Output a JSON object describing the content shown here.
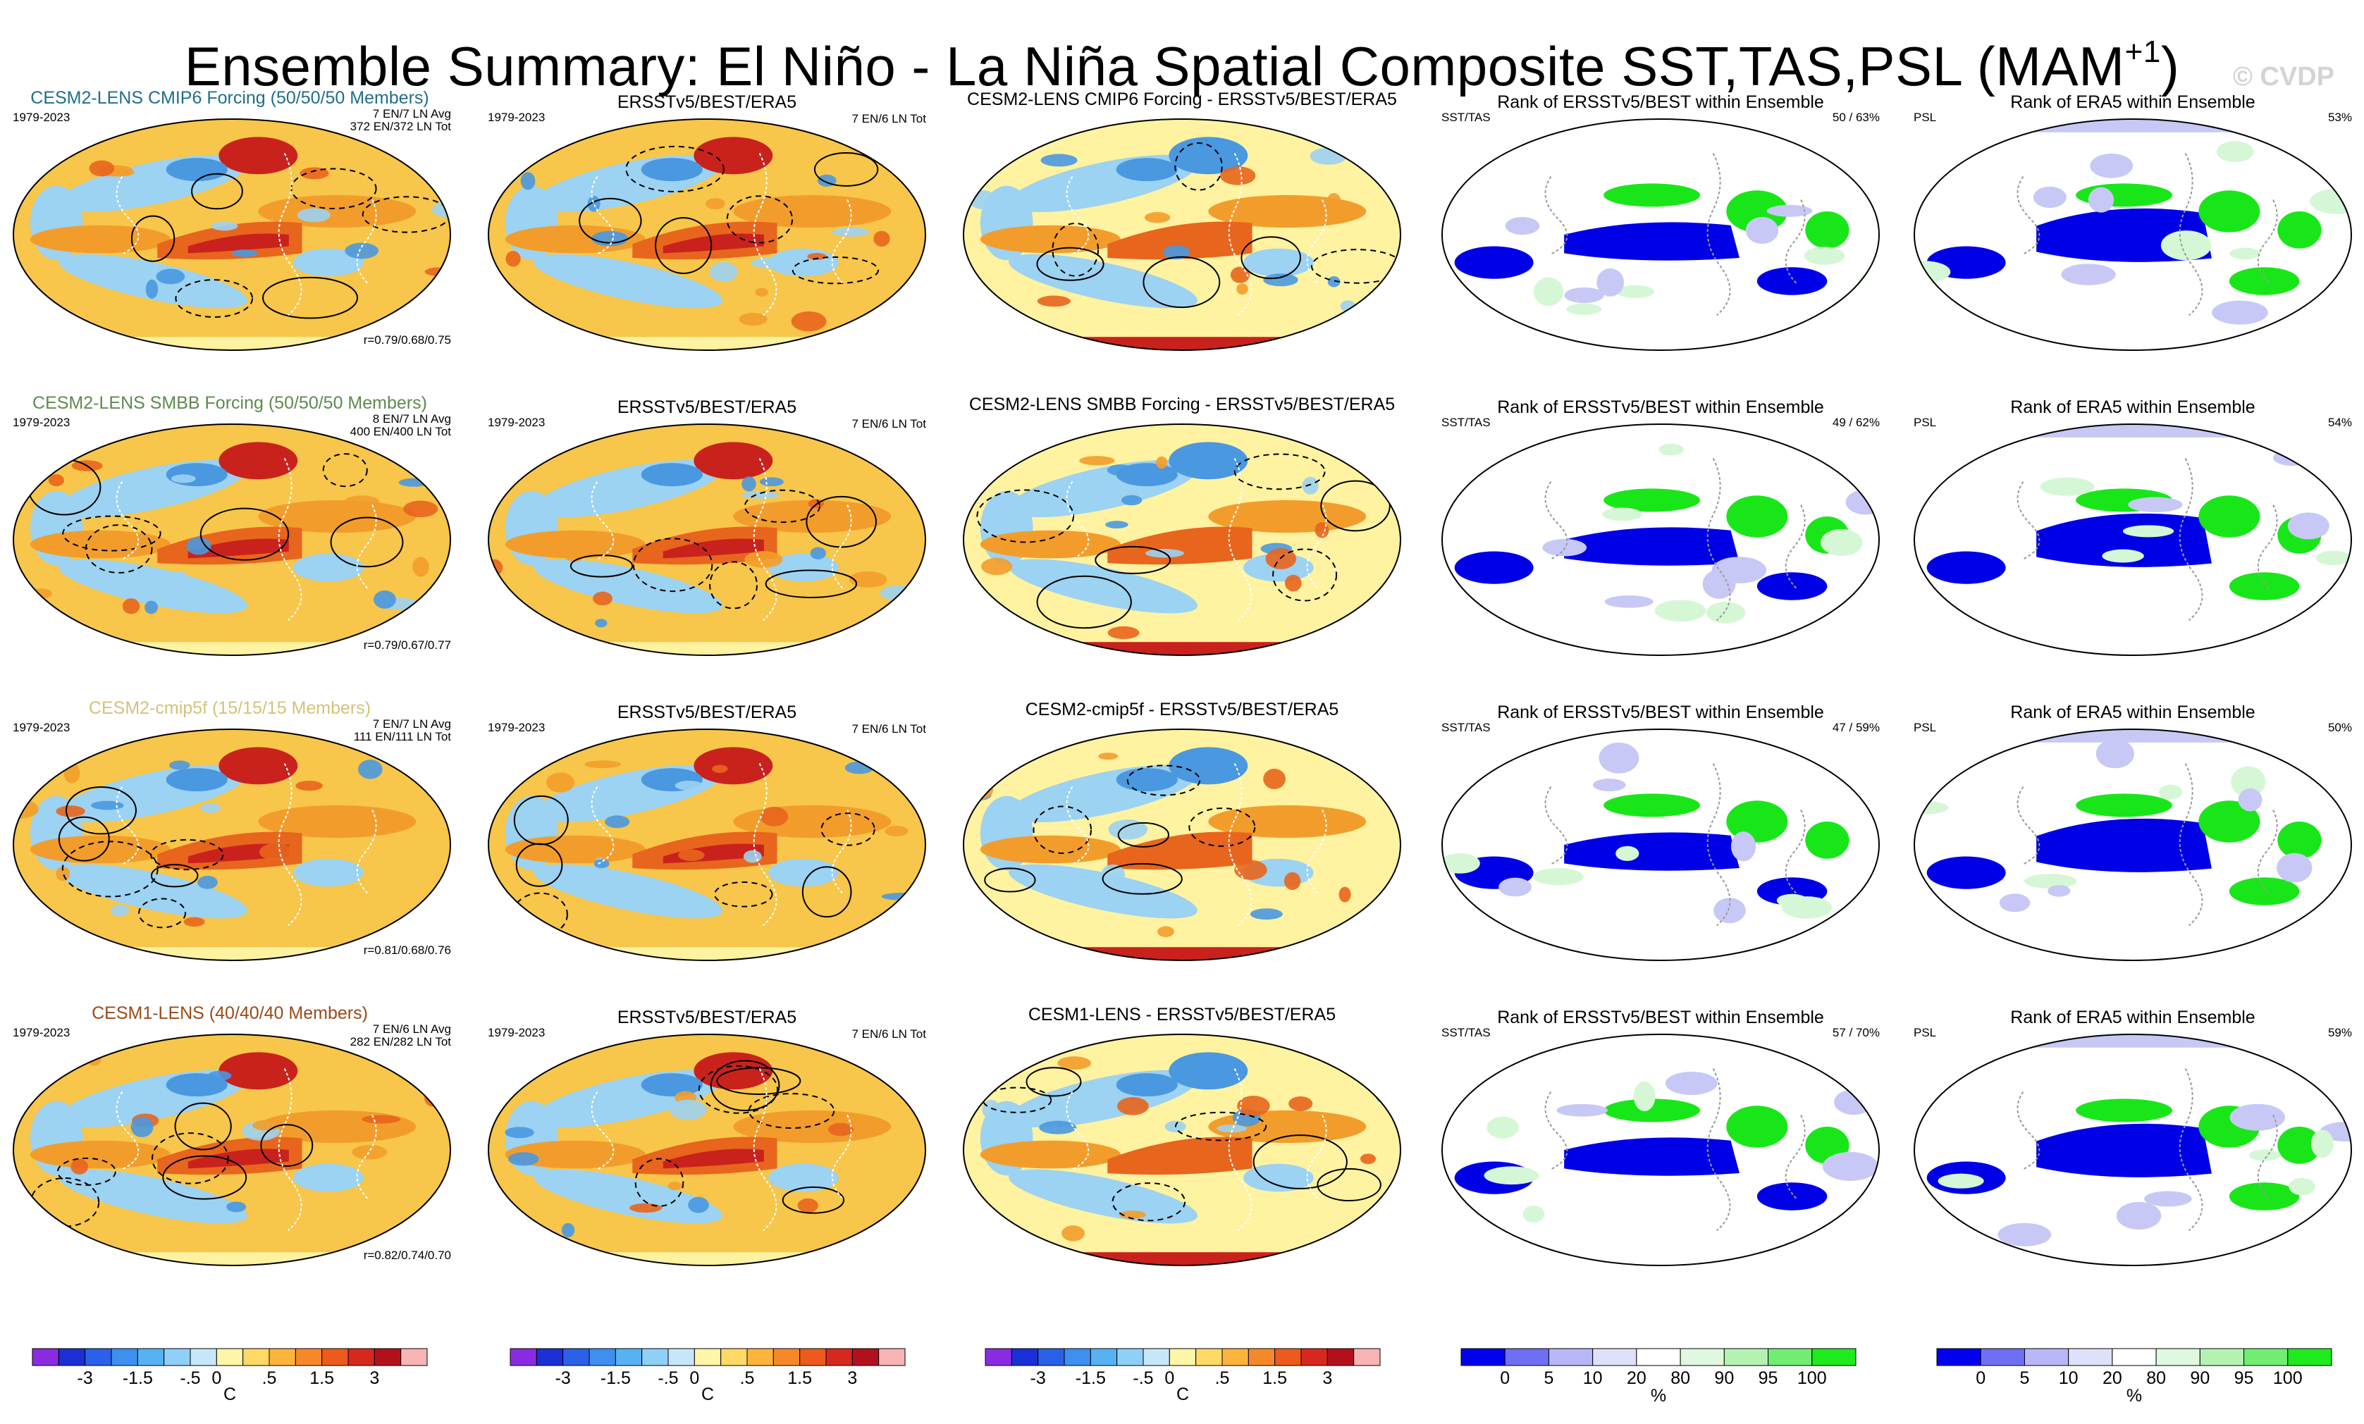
{
  "title": {
    "main": "Ensemble Summary: El Niño - La Niña Spatial Composite SST,TAS,PSL (MAM",
    "superscript": "+1",
    "close": ")"
  },
  "credit": "© CVDP",
  "period": "1979-2023",
  "rows": [
    {
      "model": "CESM2-LENS CMIP6 Forcing (50/50/50 Members)",
      "model_color": "#1f6e8c",
      "avg": "7 EN/7 LN Avg",
      "tot": "372 EN/372 LN Tot",
      "corr": "r=0.79/0.68/0.75",
      "diff_title": "CESM2-LENS CMIP6 Forcing - ERSSTv5/BEST/ERA5",
      "rank_sst_pct": "50 /  63%",
      "rank_psl_pct": "53%"
    },
    {
      "model": "CESM2-LENS SMBB Forcing (50/50/50 Members)",
      "model_color": "#5d8a4e",
      "avg": "8 EN/7 LN Avg",
      "tot": "400 EN/400 LN Tot",
      "corr": "r=0.79/0.67/0.77",
      "diff_title": "CESM2-LENS SMBB Forcing - ERSSTv5/BEST/ERA5",
      "rank_sst_pct": "49 /  62%",
      "rank_psl_pct": "54%"
    },
    {
      "model": "CESM2-cmip5f (15/15/15 Members)",
      "model_color": "#d4c27a",
      "avg": "7 EN/7 LN Avg",
      "tot": "111 EN/111 LN Tot",
      "corr": "r=0.81/0.68/0.76",
      "diff_title": "CESM2-cmip5f - ERSSTv5/BEST/ERA5",
      "rank_sst_pct": "47 /  59%",
      "rank_psl_pct": "50%"
    },
    {
      "model": "CESM1-LENS (40/40/40 Members)",
      "model_color": "#9a4a18",
      "avg": "7 EN/6 LN Avg",
      "tot": "282 EN/282 LN Tot",
      "corr": "r=0.82/0.74/0.70",
      "diff_title": "CESM1-LENS - ERSSTv5/BEST/ERA5",
      "rank_sst_pct": "57 /  70%",
      "rank_psl_pct": "59%"
    }
  ],
  "obs": {
    "title": "ERSSTv5/BEST/ERA5",
    "count": "7 EN/6 LN Tot"
  },
  "rank": {
    "sst_title": "Rank of ERSSTv5/BEST within Ensemble",
    "psl_title": "Rank of ERA5 within Ensemble",
    "sst_label": "SST/TAS",
    "psl_label": "PSL"
  },
  "colorbar_temp": {
    "colors": [
      "#8a2be2",
      "#1a2fd6",
      "#2b60e8",
      "#3e8fef",
      "#56b2f2",
      "#8fd0f6",
      "#c6e7f7",
      "#fff5a6",
      "#ffd966",
      "#fdb43c",
      "#f7882a",
      "#ed5a1c",
      "#d7281d",
      "#b3101e",
      "#f8b4b4"
    ],
    "labels": [
      "-3",
      "-1.5",
      "-.5",
      "0",
      ".5",
      "1.5",
      "3"
    ],
    "unit": "C"
  },
  "colorbar_rank": {
    "colors": [
      "#0000ee",
      "#6f6ff4",
      "#b7b7f8",
      "#e0e0fb",
      "#ffffff",
      "#dff8df",
      "#b3f2b3",
      "#73ec73",
      "#1eea1e"
    ],
    "labels": [
      "0",
      "5",
      "10",
      "20",
      "80",
      "90",
      "95",
      "100"
    ],
    "unit": "%"
  },
  "palette": {
    "ocean_bg": "#f7c64a",
    "warm1": "#f29d2b",
    "warm2": "#e8651d",
    "hot": "#c9221d",
    "cool1": "#9cd2f2",
    "cool2": "#4a98e0",
    "cold": "#1b4fc6",
    "pale": "#fff2a0",
    "rank_blue": "#0000e6",
    "rank_green": "#19e619",
    "rank_pale_blue": "#c8c8f6",
    "rank_pale_green": "#d5f7d5"
  }
}
